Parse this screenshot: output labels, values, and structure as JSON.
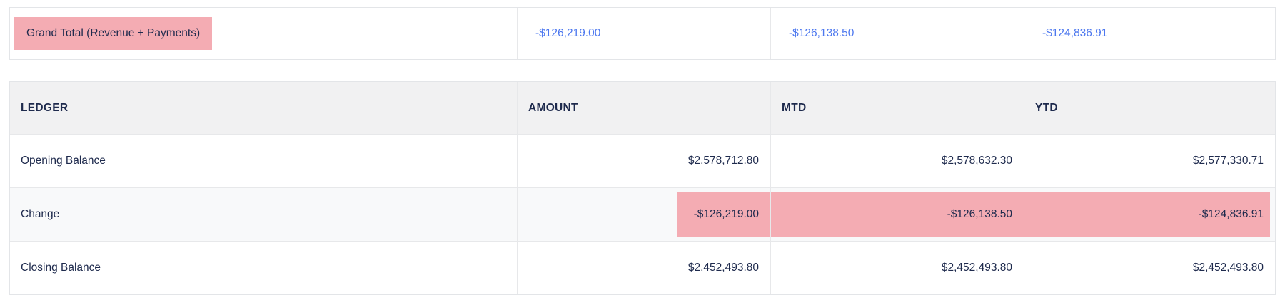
{
  "colors": {
    "highlight_pink": "#f4acb3",
    "accent_blue": "#4d78ef",
    "text_navy": "#1e2a4d",
    "header_bg": "#f1f1f2",
    "alt_row_bg": "#f8f9fa",
    "border": "#e3e5e8"
  },
  "grand_total": {
    "label": "Grand Total (Revenue + Payments)",
    "amount": "-$126,219.00",
    "mtd": "-$126,138.50",
    "ytd": "-$124,836.91"
  },
  "ledger_table": {
    "headers": [
      "LEDGER",
      "AMOUNT",
      "MTD",
      "YTD"
    ],
    "rows": [
      {
        "label": "Opening Balance",
        "amount": "$2,578,712.80",
        "mtd": "$2,578,632.30",
        "ytd": "$2,577,330.71",
        "highlighted": false
      },
      {
        "label": "Change",
        "amount": "-$126,219.00",
        "mtd": "-$126,138.50",
        "ytd": "-$124,836.91",
        "highlighted": true
      },
      {
        "label": "Closing Balance",
        "amount": "$2,452,493.80",
        "mtd": "$2,452,493.80",
        "ytd": "$2,452,493.80",
        "highlighted": false
      }
    ]
  }
}
